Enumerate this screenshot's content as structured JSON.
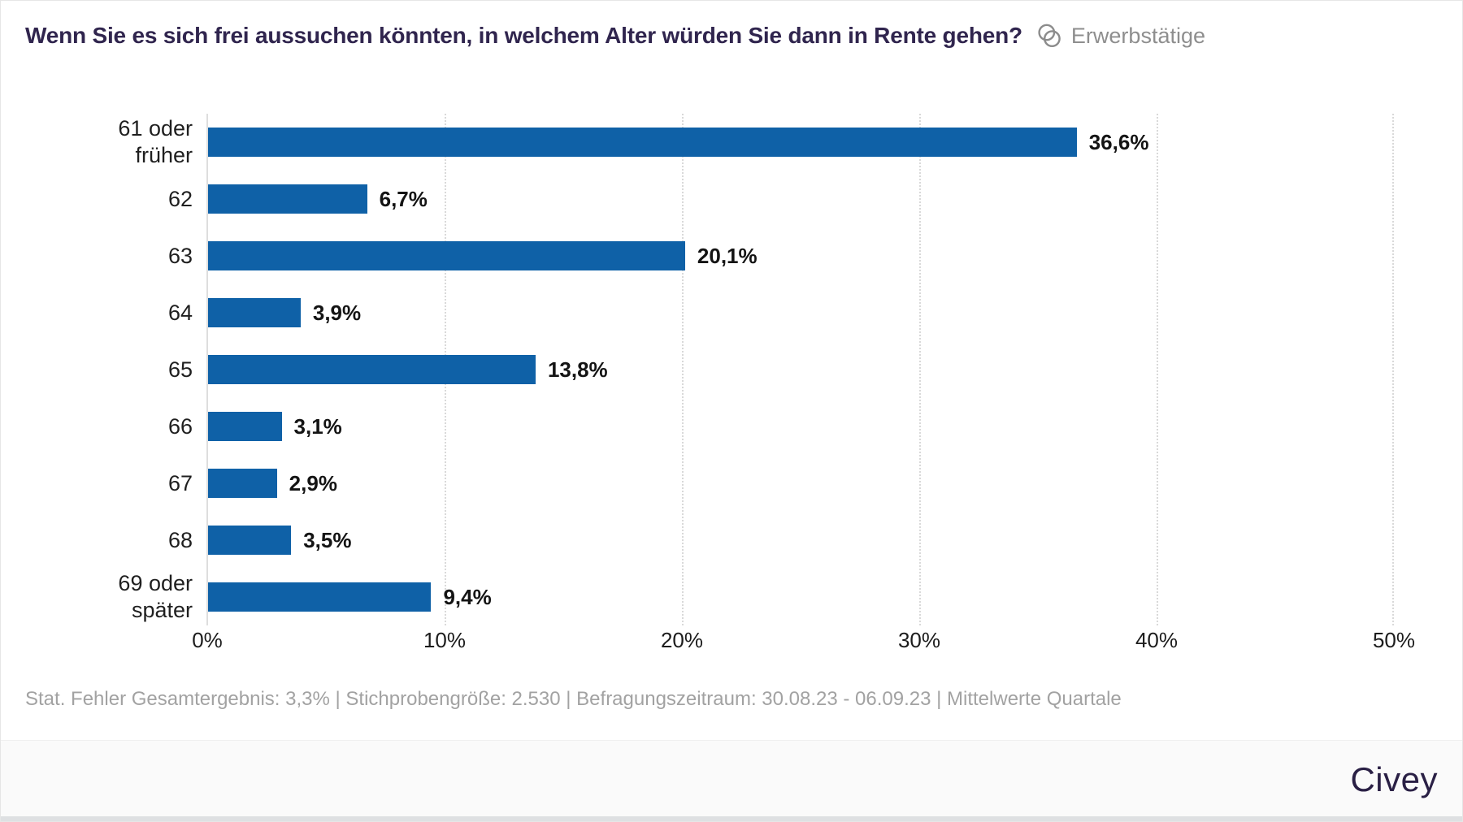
{
  "header": {
    "title": "Wenn Sie es sich frei aussuchen könnten, in welchem Alter würden Sie dann in Rente gehen?",
    "audience_icon": "overlapping-circles-icon",
    "audience_label": "Erwerbstätige"
  },
  "chart_data": {
    "type": "bar",
    "orientation": "horizontal",
    "title": "Wenn Sie es sich frei aussuchen könnten, in welchem Alter würden Sie dann in Rente gehen?",
    "categories": [
      "61 oder\nfrüher",
      "62",
      "63",
      "64",
      "65",
      "66",
      "67",
      "68",
      "69 oder\nspäter"
    ],
    "values": [
      36.6,
      6.7,
      20.1,
      3.9,
      13.8,
      3.1,
      2.9,
      3.5,
      9.4
    ],
    "value_labels": [
      "36,6%",
      "6,7%",
      "20,1%",
      "3,9%",
      "13,8%",
      "3,1%",
      "2,9%",
      "3,5%",
      "9,4%"
    ],
    "xlim": [
      0,
      50
    ],
    "x_ticks": [
      {
        "value": 0,
        "label": "0%"
      },
      {
        "value": 10,
        "label": "10%"
      },
      {
        "value": 20,
        "label": "20%"
      },
      {
        "value": 30,
        "label": "30%"
      },
      {
        "value": 40,
        "label": "40%"
      },
      {
        "value": 50,
        "label": "50%"
      }
    ],
    "grid": "dotted-vertical",
    "legend": "none",
    "bar_color": "#0f61a7",
    "unit": "%"
  },
  "footer": {
    "note": "Stat. Fehler Gesamtergebnis: 3,3% | Stichprobengröße: 2.530 | Befragungszeitraum: 30.08.23 - 06.09.23 | Mittelwerte Quartale"
  },
  "brand": {
    "logo": "Civey"
  },
  "colors": {
    "accent": "#0f61a7",
    "title": "#30254e",
    "audience_gray": "#8e8e8e",
    "footnote_gray": "#a2a2a2",
    "gridline": "#d9d9d9",
    "brand_purple": "#2a2045",
    "band_bg": "#fafafa"
  }
}
